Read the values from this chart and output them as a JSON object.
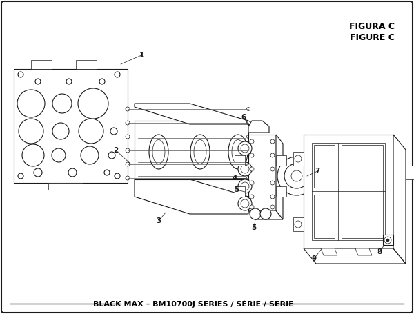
{
  "title": "BLACK MAX – BM10700J SERIES / SÉRIE / SERIE",
  "figure_label": "FIGURE C",
  "figura_label": "FIGURA C",
  "bg_color": "#ffffff",
  "border_color": "#000000",
  "text_color": "#000000",
  "title_fontsize": 8.5,
  "label_fontsize": 7.5,
  "figure_label_fontsize": 8.5
}
